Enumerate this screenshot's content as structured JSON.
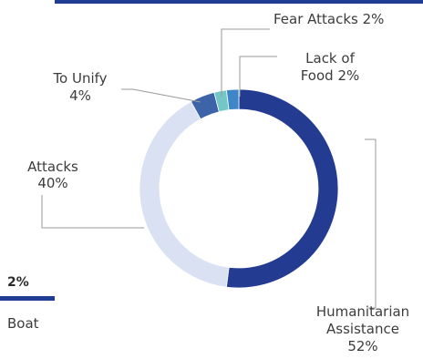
{
  "side_panel": {
    "percent": "2%",
    "label": "Boat"
  },
  "chart_data": {
    "type": "pie",
    "variant": "donut",
    "title": "",
    "slices": [
      {
        "label": "Humanitarian Assistance",
        "value": 52,
        "color": "#233c92",
        "label_lines": [
          "Humanitarian",
          "Assistance",
          "52%"
        ]
      },
      {
        "label": "Attacks",
        "value": 40,
        "color": "#d9e1f2",
        "label_lines": [
          "Attacks",
          "40%"
        ]
      },
      {
        "label": "To Unify",
        "value": 4,
        "color": "#3d63a8",
        "label_lines": [
          "To Unify",
          "4%"
        ]
      },
      {
        "label": "Fear Attacks",
        "value": 2,
        "color": "#74c7c7",
        "label_lines": [
          "Fear Attacks 2%"
        ]
      },
      {
        "label": "Lack of Food",
        "value": 2,
        "color": "#3f86c8",
        "label_lines": [
          "Lack of",
          "Food 2%"
        ]
      }
    ],
    "leader_color": "#9a9a9a",
    "start": "top, clockwise"
  }
}
